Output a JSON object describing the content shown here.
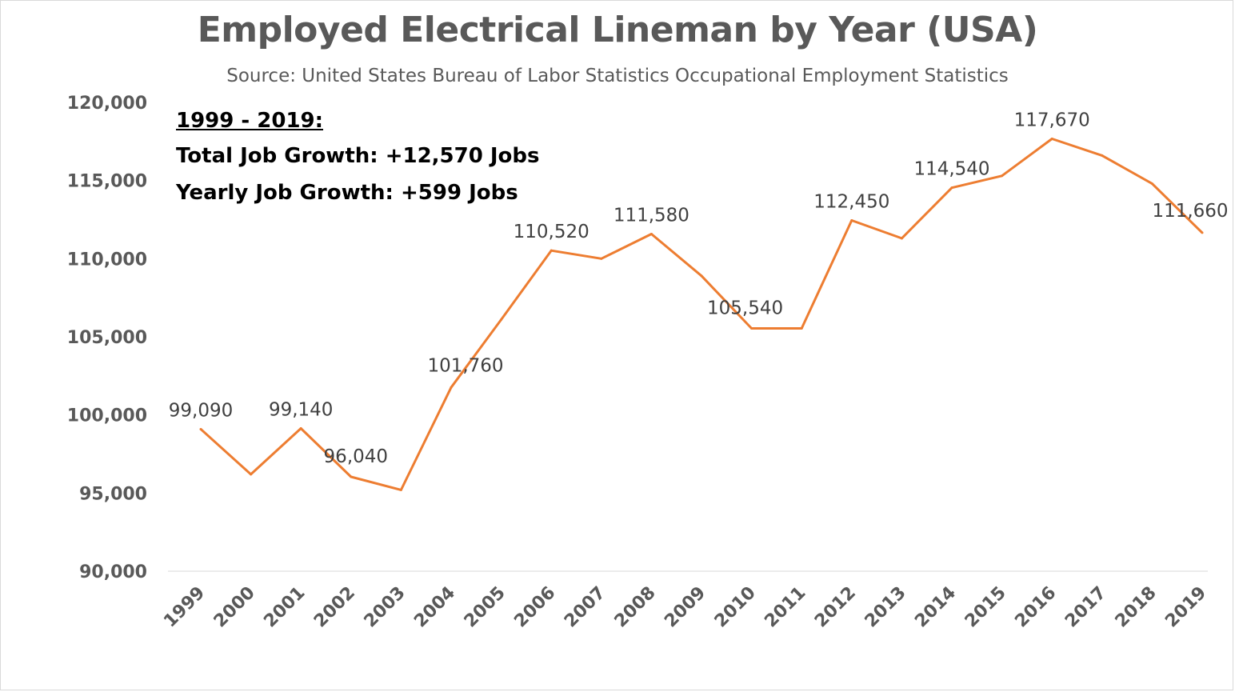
{
  "chart_data": {
    "type": "line",
    "title": "Employed Electrical Lineman by Year (USA)",
    "subtitle": "Source: United States Bureau of Labor Statistics Occupational Employment Statistics",
    "categories": [
      "1999",
      "2000",
      "2001",
      "2002",
      "2003",
      "2004",
      "2005",
      "2006",
      "2007",
      "2008",
      "2009",
      "2010",
      "2011",
      "2012",
      "2013",
      "2014",
      "2015",
      "2016",
      "2017",
      "2018",
      "2019"
    ],
    "series": [
      {
        "values": [
          99090,
          96200,
          99140,
          96040,
          95200,
          101760,
          106100,
          110520,
          110000,
          111580,
          108900,
          105540,
          105540,
          112450,
          111300,
          114540,
          115300,
          117670,
          116600,
          114800,
          111660
        ],
        "color": "#ED7D31"
      }
    ],
    "data_labels": [
      {
        "index": 0,
        "text": "99,090"
      },
      {
        "index": 2,
        "text": "99,140"
      },
      {
        "index": 3,
        "text": "96,040"
      },
      {
        "index": 5,
        "text": "101,760"
      },
      {
        "index": 7,
        "text": "110,520"
      },
      {
        "index": 9,
        "text": "111,580"
      },
      {
        "index": 11,
        "text": "105,540"
      },
      {
        "index": 13,
        "text": "112,450"
      },
      {
        "index": 15,
        "text": "114,540"
      },
      {
        "index": 17,
        "text": "117,670"
      },
      {
        "index": 20,
        "text": "111,660"
      }
    ],
    "ylim": [
      90000,
      120000
    ],
    "yticks": [
      "90,000",
      "95,000",
      "100,000",
      "105,000",
      "110,000",
      "115,000",
      "120,000"
    ],
    "xlabel": "",
    "ylabel": "",
    "grid": false,
    "legend": "none"
  },
  "annotation": {
    "heading": "1999 - 2019:",
    "line1": "Total Job Growth: +12,570 Jobs",
    "line2": "Yearly Job Growth: +599 Jobs"
  }
}
